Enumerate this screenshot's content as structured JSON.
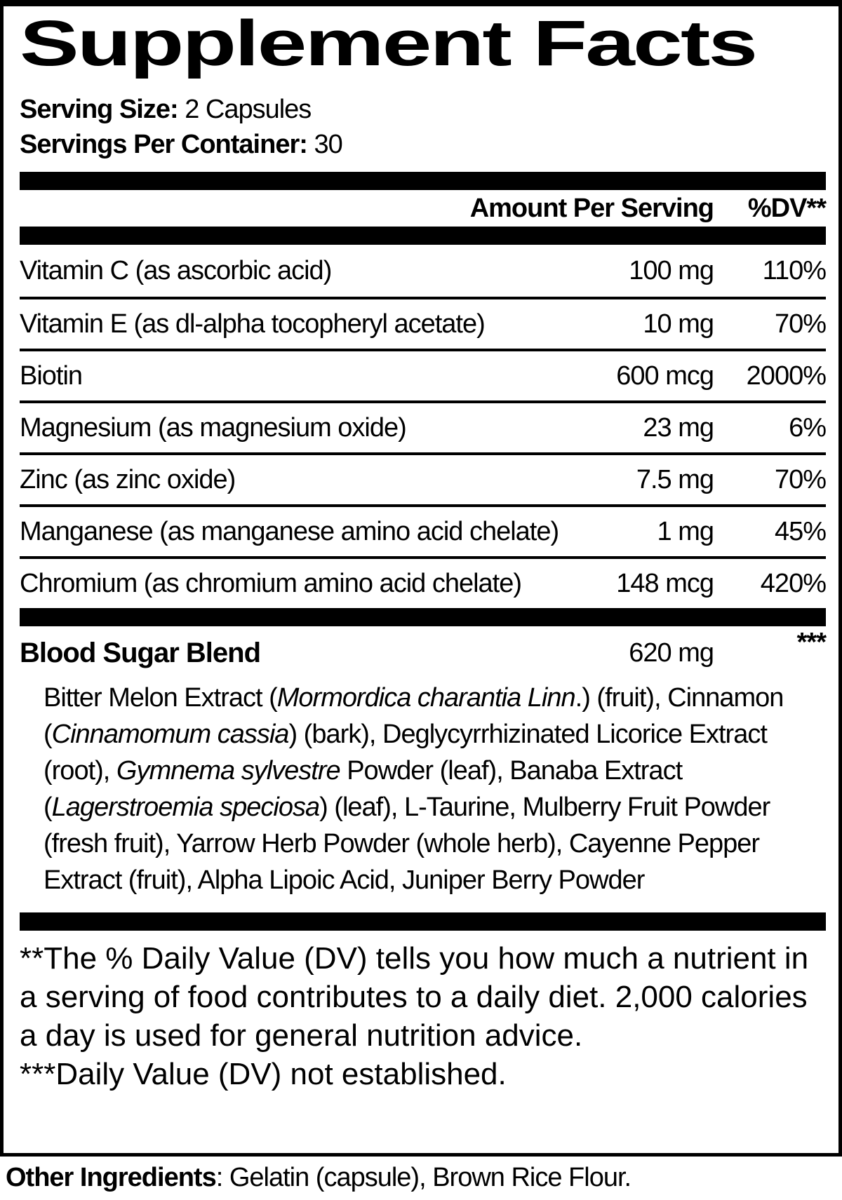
{
  "title": "Supplement Facts",
  "serving": {
    "size_label": "Serving Size:",
    "size_value": " 2 Capsules",
    "per_container_label": "Servings Per Container:",
    "per_container_value": " 30"
  },
  "table": {
    "amount_header": "Amount Per Serving",
    "dv_header": "%DV**",
    "rows": [
      {
        "name": "Vitamin C (as ascorbic acid)",
        "amount": "100 mg",
        "dv": "110%"
      },
      {
        "name": "Vitamin E (as dl-alpha tocopheryl acetate)",
        "amount": "10 mg",
        "dv": "70%"
      },
      {
        "name": "Biotin",
        "amount": "600 mcg",
        "dv": "2000%"
      },
      {
        "name": "Magnesium (as magnesium oxide)",
        "amount": "23 mg",
        "dv": "6%"
      },
      {
        "name": "Zinc (as zinc oxide)",
        "amount": "7.5 mg",
        "dv": "70%"
      },
      {
        "name": "Manganese (as manganese amino acid chelate)",
        "amount": "1 mg",
        "dv": "45%"
      },
      {
        "name": "Chromium (as chromium amino acid chelate)",
        "amount": "148 mcg",
        "dv": "420%"
      }
    ],
    "blend": {
      "name": "Blood Sugar Blend",
      "amount": "620 mg",
      "dv": "***",
      "description_segments": [
        {
          "t": "Bitter Melon Extract ("
        },
        {
          "t": "Mormordica charantia Linn",
          "i": true
        },
        {
          "t": ".) (fruit), Cinnamon ("
        },
        {
          "t": "Cinnamomum cassia",
          "i": true
        },
        {
          "t": ") (bark), Deglycyrrhizinated Licorice Extract (root), "
        },
        {
          "t": "Gymnema sylvestre",
          "i": true
        },
        {
          "t": " Powder (leaf), Banaba Extract ("
        },
        {
          "t": "Lagerstroemia speciosa",
          "i": true
        },
        {
          "t": ") (leaf), L-Taurine, Mulberry Fruit Powder (fresh fruit), Yarrow Herb Powder (whole herb), Cayenne Pepper Extract (fruit), Alpha Lipoic Acid, Juniper Berry Powder"
        }
      ]
    }
  },
  "footnotes": {
    "dv_note": "**The % Daily Value (DV) tells you how much a nutrient in a serving of food contributes to a daily diet. 2,000 calories a day is used for general nutrition advice.",
    "not_established_note": "***Daily Value (DV) not established."
  },
  "other_ingredients": {
    "label": "Other Ingredients",
    "value": ": Gelatin (capsule), Brown Rice Flour."
  },
  "colors": {
    "text": "#000000",
    "background": "#ffffff"
  }
}
